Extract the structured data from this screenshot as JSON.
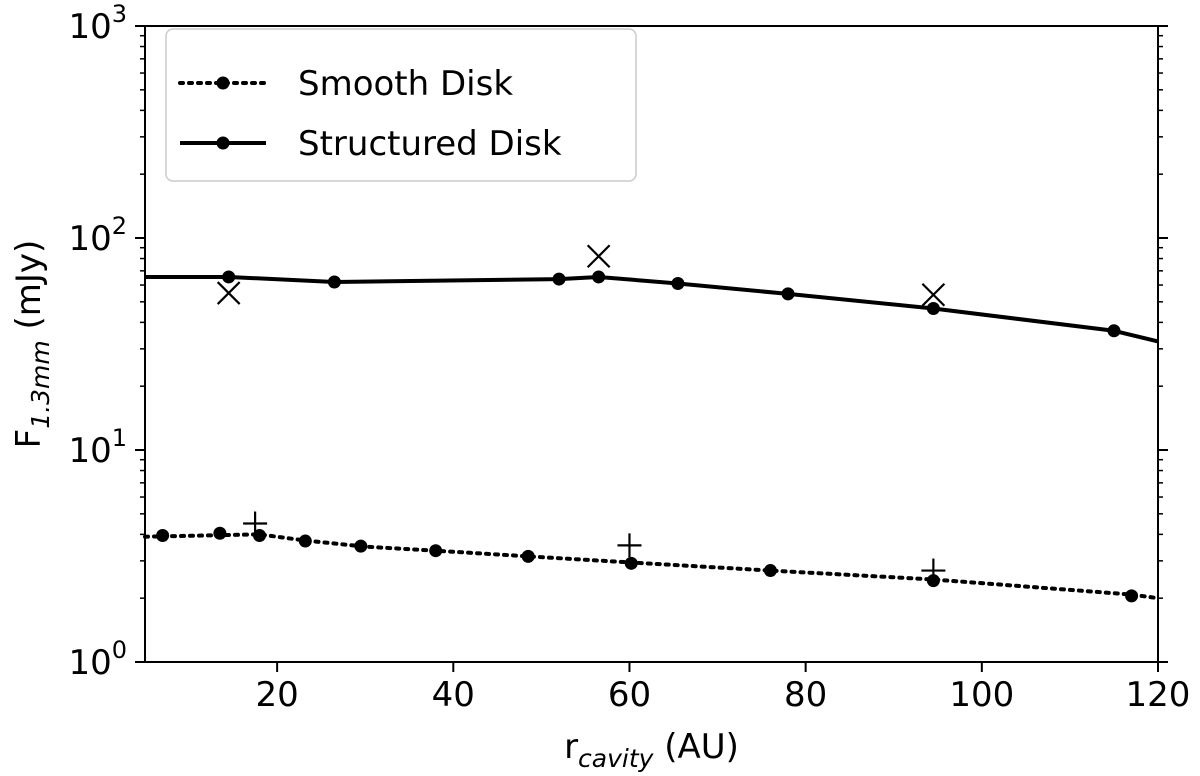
{
  "chart_data": {
    "type": "line",
    "xlabel": {
      "main": "r",
      "sub": "cavity",
      "unit": " (AU)"
    },
    "ylabel": {
      "main": "F",
      "sub": "1.3mm",
      "unit": " (mJy)"
    },
    "xlim": [
      5,
      120
    ],
    "ylim": [
      1,
      1000
    ],
    "yscale": "log",
    "grid": false,
    "legend_position": "top-left",
    "x_ticks": [
      {
        "value": 20,
        "label": "20"
      },
      {
        "value": 40,
        "label": "40"
      },
      {
        "value": 60,
        "label": "60"
      },
      {
        "value": 80,
        "label": "80"
      },
      {
        "value": 100,
        "label": "100"
      },
      {
        "value": 120,
        "label": "120"
      }
    ],
    "y_ticks": [
      {
        "value": 1,
        "base": "10",
        "exp": "0"
      },
      {
        "value": 10,
        "base": "10",
        "exp": "1"
      },
      {
        "value": 100,
        "base": "10",
        "exp": "2"
      },
      {
        "value": 1000,
        "base": "10",
        "exp": "3"
      }
    ],
    "series": [
      {
        "name": "Smooth Disk",
        "linestyle": "dotted",
        "color": "#000000",
        "line": [
          [
            5,
            3.9
          ],
          [
            18,
            4.0
          ],
          [
            23,
            3.75
          ],
          [
            30,
            3.5
          ],
          [
            38,
            3.35
          ],
          [
            48.5,
            3.15
          ],
          [
            60,
            2.95
          ],
          [
            76,
            2.7
          ],
          [
            94.5,
            2.45
          ],
          [
            117,
            2.08
          ],
          [
            120,
            2.0
          ]
        ],
        "points": [
          [
            7,
            3.95
          ],
          [
            13.5,
            4.05
          ],
          [
            18,
            3.95
          ],
          [
            23.2,
            3.72
          ],
          [
            29.5,
            3.52
          ],
          [
            38,
            3.35
          ],
          [
            48.5,
            3.15
          ],
          [
            60.2,
            2.92
          ],
          [
            76,
            2.7
          ],
          [
            94.5,
            2.42
          ],
          [
            117,
            2.05
          ]
        ]
      },
      {
        "name": "Structured Disk",
        "linestyle": "solid",
        "color": "#000000",
        "line": [
          [
            5,
            65.5
          ],
          [
            14.5,
            65.5
          ],
          [
            26.5,
            62
          ],
          [
            52,
            64
          ],
          [
            56.5,
            65.5
          ],
          [
            65.5,
            61
          ],
          [
            78,
            54.5
          ],
          [
            94.5,
            46.5
          ],
          [
            115,
            36.5
          ],
          [
            120,
            32.5
          ]
        ],
        "points": [
          [
            14.5,
            65.5
          ],
          [
            26.5,
            62
          ],
          [
            52,
            64
          ],
          [
            56.5,
            65.5
          ],
          [
            65.5,
            61
          ],
          [
            78,
            54.5
          ],
          [
            94.5,
            46.5
          ],
          [
            115,
            36.5
          ]
        ]
      }
    ],
    "reference_markers": [
      {
        "marker": "x",
        "points": [
          [
            14.5,
            55
          ],
          [
            56.5,
            82
          ],
          [
            94.5,
            54
          ]
        ]
      },
      {
        "marker": "plus",
        "points": [
          [
            17.5,
            4.5
          ],
          [
            60,
            3.55
          ],
          [
            94.5,
            2.7
          ]
        ]
      }
    ]
  }
}
